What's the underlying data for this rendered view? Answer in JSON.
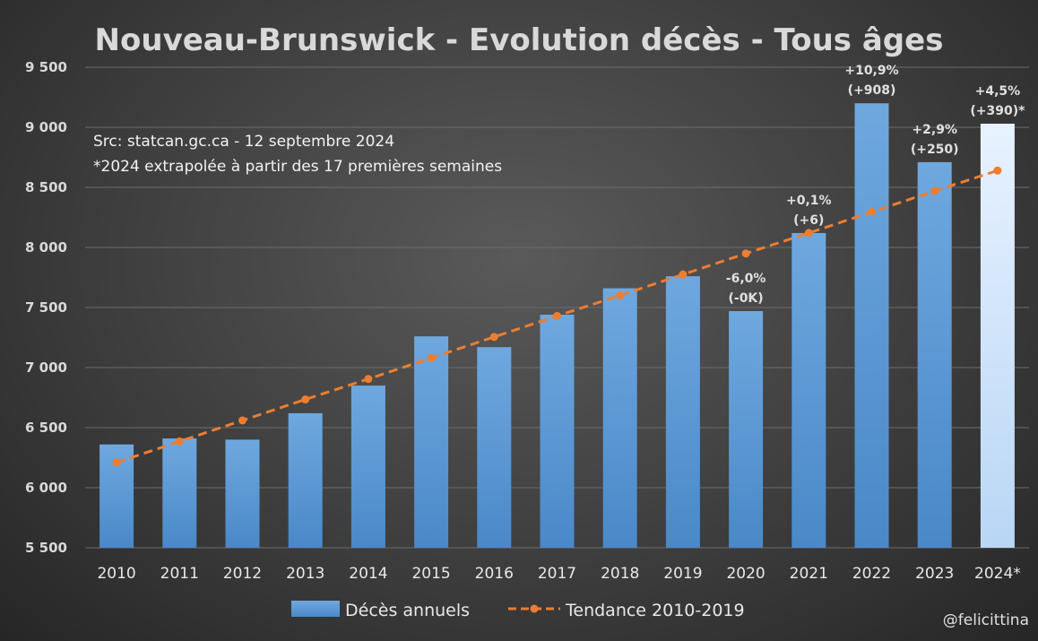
{
  "chart_data": {
    "type": "bar",
    "title": "Nouveau-Brunswick - Evolution décès - Tous âges",
    "notes": [
      "Src: statcan.gc.ca - 12 septembre 2024",
      "*2024 extrapolée à partir des 17 premières semaines"
    ],
    "categories": [
      "2010",
      "2011",
      "2012",
      "2013",
      "2014",
      "2015",
      "2016",
      "2017",
      "2018",
      "2019",
      "2020",
      "2021",
      "2022",
      "2023",
      "2024*"
    ],
    "yticks": [
      "5 500",
      "6 000",
      "6 500",
      "7 000",
      "7 500",
      "8 000",
      "8 500",
      "9 000",
      "9 500"
    ],
    "ylim": [
      5500,
      9500
    ],
    "grid": true,
    "legend_position": "bottom",
    "series": [
      {
        "name": "Décès annuels",
        "kind": "bar",
        "color": "#5b9bd5",
        "highlight_color": "#ddeeff",
        "values": [
          6360,
          6410,
          6400,
          6620,
          6850,
          7260,
          7170,
          7440,
          7660,
          7760,
          7470,
          8120,
          9200,
          8710,
          9030
        ]
      },
      {
        "name": "Tendance 2010-2019",
        "kind": "line",
        "style": "dashed",
        "color": "#ed7d31",
        "values": [
          6210,
          6385,
          6560,
          6735,
          6905,
          7080,
          7255,
          7430,
          7600,
          7775,
          7950,
          8120,
          8295,
          8470,
          8640
        ]
      }
    ],
    "data_labels": [
      {
        "category": "2020",
        "lines": [
          "-6,0%",
          "(-0K)"
        ]
      },
      {
        "category": "2021",
        "lines": [
          "+0,1%",
          "(+6)"
        ]
      },
      {
        "category": "2022",
        "lines": [
          "+10,9%",
          "(+908)"
        ]
      },
      {
        "category": "2023",
        "lines": [
          "+2,9%",
          "(+250)"
        ]
      },
      {
        "category": "2024*",
        "lines": [
          "+4,5%",
          "(+390)*"
        ]
      }
    ],
    "credit": "@felicittina"
  }
}
